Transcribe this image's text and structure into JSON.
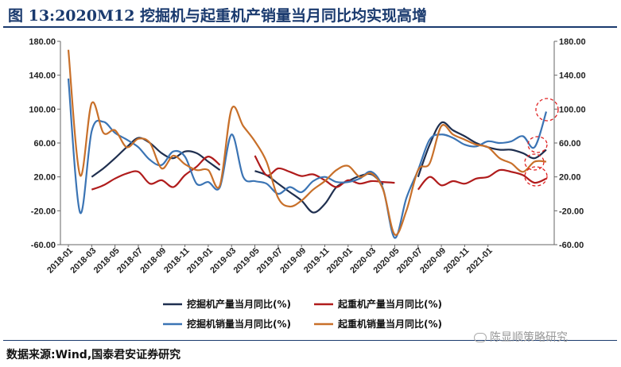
{
  "title": "图 13:2020M12 挖掘机与起重机产销量当月同比均实现高增",
  "source": "数据来源:Wind,国泰君安证券研究",
  "watermark": "陈显顺策略研究",
  "colors": {
    "excavator_production": "#1f2f4f",
    "crane_production": "#b01c1c",
    "excavator_sales": "#3b74b4",
    "crane_sales": "#c8702a",
    "annotation": "#e02020"
  },
  "chart_data": {
    "type": "line",
    "xlabel": "",
    "ylabel": "",
    "ylim": [
      -60,
      180
    ],
    "y_ticks": [
      "180.00",
      "140.00",
      "100.00",
      "60.00",
      "20.00",
      "-20.00",
      "-60.00"
    ],
    "x_tick_labels": [
      "2018-01",
      "2018-03",
      "2018-05",
      "2018-07",
      "2018-09",
      "2018-11",
      "2019-01",
      "2019-03",
      "2019-05",
      "2019-07",
      "2019-09",
      "2019-11",
      "2020-01",
      "2020-03",
      "2020-05",
      "2020-07",
      "2020-09",
      "2020-11",
      "2021-01"
    ],
    "legend_position": "bottom",
    "grid": false,
    "series": [
      {
        "name": "挖掘机产量当月同比(%)",
        "key": "excavator_production",
        "values": [
          null,
          null,
          20,
          30,
          42,
          55,
          66,
          60,
          48,
          42,
          50,
          48,
          38,
          28,
          null,
          null,
          27,
          22,
          12,
          2,
          -8,
          -22,
          -12,
          8,
          15,
          21,
          23,
          11,
          null,
          null,
          20,
          58,
          84,
          75,
          68,
          60,
          55,
          52,
          52,
          48,
          42,
          52,
          null
        ]
      },
      {
        "name": "起重机产量当月同比(%)",
        "key": "crane_production",
        "values": [
          null,
          null,
          5,
          10,
          18,
          24,
          26,
          12,
          16,
          8,
          22,
          32,
          44,
          34,
          null,
          null,
          45,
          22,
          30,
          26,
          21,
          23,
          16,
          8,
          16,
          12,
          15,
          14,
          13,
          null,
          5,
          20,
          10,
          15,
          12,
          18,
          20,
          28,
          26,
          22,
          13,
          18,
          null
        ]
      },
      {
        "name": "挖掘机销量当月同比(%)",
        "key": "excavator_sales",
        "values": [
          136,
          -22,
          74,
          85,
          72,
          64,
          55,
          40,
          34,
          50,
          44,
          12,
          14,
          8,
          70,
          20,
          15,
          12,
          0,
          8,
          2,
          15,
          20,
          14,
          14,
          18,
          26,
          6,
          -52,
          -5,
          28,
          64,
          70,
          66,
          58,
          56,
          62,
          60,
          62,
          68,
          55,
          97,
          null
        ]
      },
      {
        "name": "起重机销量当月同比(%)",
        "key": "crane_sales",
        "values": [
          170,
          22,
          107,
          72,
          75,
          55,
          65,
          60,
          30,
          45,
          35,
          28,
          28,
          10,
          100,
          80,
          62,
          38,
          -5,
          -15,
          -8,
          5,
          15,
          28,
          33,
          20,
          24,
          5,
          -48,
          -20,
          28,
          36,
          80,
          70,
          64,
          58,
          55,
          42,
          36,
          26,
          38,
          38,
          null
        ]
      }
    ],
    "annotations": [
      "100-circle",
      "60-circle",
      "40-circle",
      "20-circle"
    ]
  }
}
